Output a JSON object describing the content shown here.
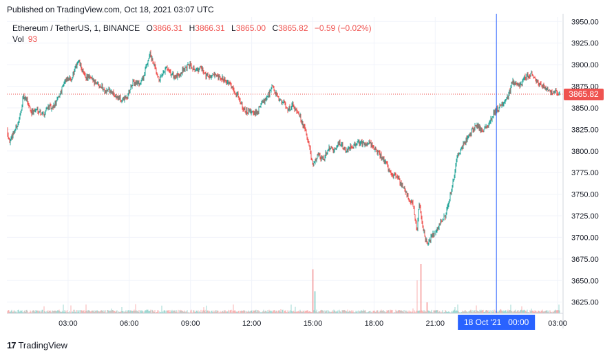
{
  "header": {
    "published": "Published on TradingView.com, Oct 18, 2021 03:07 UTC"
  },
  "legend": {
    "symbol": "Ethereum / TetherUS, 1, BINANCE",
    "o_label": "O",
    "o_value": "3866.31",
    "h_label": "H",
    "h_value": "3866.31",
    "l_label": "L",
    "l_value": "3865.00",
    "c_label": "C",
    "c_value": "3865.82",
    "change": "−0.59 (−0.02%)",
    "vol_label": "Vol",
    "vol_value": "93"
  },
  "footer": {
    "logo_text": "17",
    "brand": "TradingView"
  },
  "colors": {
    "up": "#26a69a",
    "down": "#ef5350",
    "price_line": "#ef5350",
    "crosshair": "#2962ff",
    "grid": "#f0f3fa"
  },
  "chart_data": {
    "type": "line",
    "title": "",
    "xlabel": "",
    "ylabel": "",
    "ylim": [
      3612,
      3955
    ],
    "y_ticks": [
      "3950.00",
      "3925.00",
      "3900.00",
      "3875.00",
      "3850.00",
      "3825.00",
      "3800.00",
      "3775.00",
      "3750.00",
      "3725.00",
      "3700.00",
      "3675.00",
      "3650.00",
      "3625.00"
    ],
    "x_ticks": [
      "03:00",
      "06:00",
      "09:00",
      "12:00",
      "15:00",
      "18:00",
      "21:00",
      "03:00"
    ],
    "x_tick_hours": [
      3,
      6,
      9,
      12,
      15,
      18,
      21,
      27
    ],
    "x_range_hours": [
      0.0,
      27.2
    ],
    "grid": true,
    "last_price": 3865.82,
    "last_price_label": "3865.82",
    "crosshair": {
      "hour": 24.0,
      "label": "18 Oct '21   00:00"
    },
    "series": [
      {
        "x_hours": [
          0.0,
          0.15,
          0.3,
          0.6,
          0.8,
          1.0,
          1.2,
          1.5,
          1.8,
          2.0,
          2.2,
          2.5,
          2.8,
          3.2,
          3.5,
          3.8,
          4.0,
          4.2,
          4.5,
          4.8,
          5.0,
          5.3,
          5.6,
          5.9,
          6.0,
          6.2,
          6.5,
          6.7,
          7.0,
          7.3,
          7.4,
          7.6,
          7.8,
          8.0,
          8.3,
          8.6,
          9.0,
          9.3,
          9.5,
          9.8,
          10.1,
          10.4,
          10.7,
          11.0,
          11.3,
          11.7,
          12.0,
          12.2,
          12.5,
          12.8,
          13.0,
          13.3,
          13.6,
          13.8,
          14.0,
          14.3,
          14.6,
          14.8,
          15.0,
          15.1,
          15.3,
          15.5,
          15.8,
          16.0,
          16.3,
          16.6,
          16.9,
          17.2,
          17.5,
          17.8,
          18.1,
          18.5,
          18.8,
          19.1,
          19.4,
          19.7,
          19.9,
          20.0,
          20.1,
          20.2,
          20.4,
          20.6,
          20.8,
          21.0,
          21.2,
          21.5,
          21.8,
          22.1,
          22.4,
          22.7,
          23.0,
          23.3,
          23.6,
          23.9,
          24.2,
          24.5,
          24.8,
          25.1,
          25.4,
          25.7,
          26.0,
          26.3,
          26.6,
          26.9,
          27.0
        ],
        "close": [
          3825,
          3810,
          3820,
          3835,
          3862,
          3858,
          3845,
          3848,
          3842,
          3852,
          3848,
          3860,
          3880,
          3885,
          3905,
          3887,
          3885,
          3882,
          3878,
          3870,
          3870,
          3865,
          3858,
          3862,
          3870,
          3880,
          3878,
          3886,
          3913,
          3893,
          3883,
          3885,
          3896,
          3890,
          3885,
          3893,
          3900,
          3893,
          3896,
          3887,
          3887,
          3884,
          3883,
          3875,
          3865,
          3845,
          3845,
          3843,
          3855,
          3865,
          3875,
          3860,
          3855,
          3848,
          3853,
          3845,
          3825,
          3808,
          3780,
          3790,
          3795,
          3790,
          3805,
          3800,
          3810,
          3800,
          3805,
          3810,
          3808,
          3810,
          3800,
          3790,
          3775,
          3770,
          3760,
          3745,
          3740,
          3725,
          3705,
          3740,
          3710,
          3690,
          3700,
          3705,
          3715,
          3725,
          3755,
          3795,
          3808,
          3820,
          3830,
          3825,
          3830,
          3845,
          3852,
          3860,
          3880,
          3875,
          3885,
          3890,
          3880,
          3875,
          3868,
          3870,
          3866
        ]
      }
    ],
    "volume": {
      "max_y": 1000,
      "base_level": 45,
      "spikes": [
        {
          "hour": 15.0,
          "value": 800
        },
        {
          "hour": 15.1,
          "value": 400
        },
        {
          "hour": 20.1,
          "value": 600
        },
        {
          "hour": 20.3,
          "value": 900
        },
        {
          "hour": 20.6,
          "value": 200
        }
      ]
    }
  }
}
